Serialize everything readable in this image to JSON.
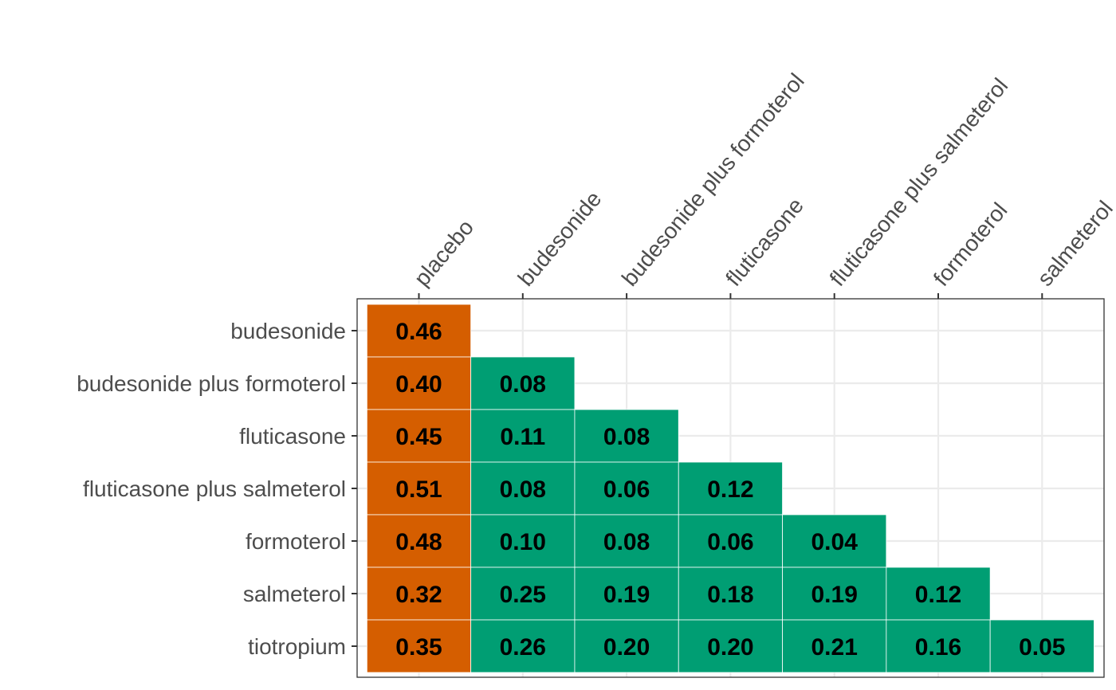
{
  "chart_data": {
    "type": "heatmap",
    "x_categories": [
      "placebo",
      "budesonide",
      "budesonide plus formoterol",
      "fluticasone",
      "fluticasone plus salmeterol",
      "formoterol",
      "salmeterol"
    ],
    "y_categories": [
      "budesonide",
      "budesonide plus formoterol",
      "fluticasone",
      "fluticasone plus salmeterol",
      "formoterol",
      "salmeterol",
      "tiotropium"
    ],
    "values": [
      [
        0.46,
        null,
        null,
        null,
        null,
        null,
        null
      ],
      [
        0.4,
        0.08,
        null,
        null,
        null,
        null,
        null
      ],
      [
        0.45,
        0.11,
        0.08,
        null,
        null,
        null,
        null
      ],
      [
        0.51,
        0.08,
        0.06,
        0.12,
        null,
        null,
        null
      ],
      [
        0.48,
        0.1,
        0.08,
        0.06,
        0.04,
        null,
        null
      ],
      [
        0.32,
        0.25,
        0.19,
        0.18,
        0.19,
        0.12,
        null
      ],
      [
        0.35,
        0.26,
        0.2,
        0.2,
        0.21,
        0.16,
        0.05
      ]
    ],
    "labels": [
      [
        "0.46",
        "",
        "",
        "",
        "",
        "",
        ""
      ],
      [
        "0.40",
        "0.08",
        "",
        "",
        "",
        "",
        ""
      ],
      [
        "0.45",
        "0.11",
        "0.08",
        "",
        "",
        "",
        ""
      ],
      [
        "0.51",
        "0.08",
        "0.06",
        "0.12",
        "",
        "",
        ""
      ],
      [
        "0.48",
        "0.10",
        "0.08",
        "0.06",
        "0.04",
        "",
        ""
      ],
      [
        "0.32",
        "0.25",
        "0.19",
        "0.18",
        "0.19",
        "0.12",
        ""
      ],
      [
        "0.35",
        "0.26",
        "0.20",
        "0.20",
        "0.21",
        "0.16",
        "0.05"
      ]
    ],
    "x_axis_position": "top",
    "grid": true,
    "colors": {
      "first_column": "#D55E00",
      "other_columns": "#009E73",
      "grid": "#EBEBEB",
      "panel_border": "#333333",
      "tick_text": "#4D4D4D",
      "cell_text": "#000000"
    }
  }
}
